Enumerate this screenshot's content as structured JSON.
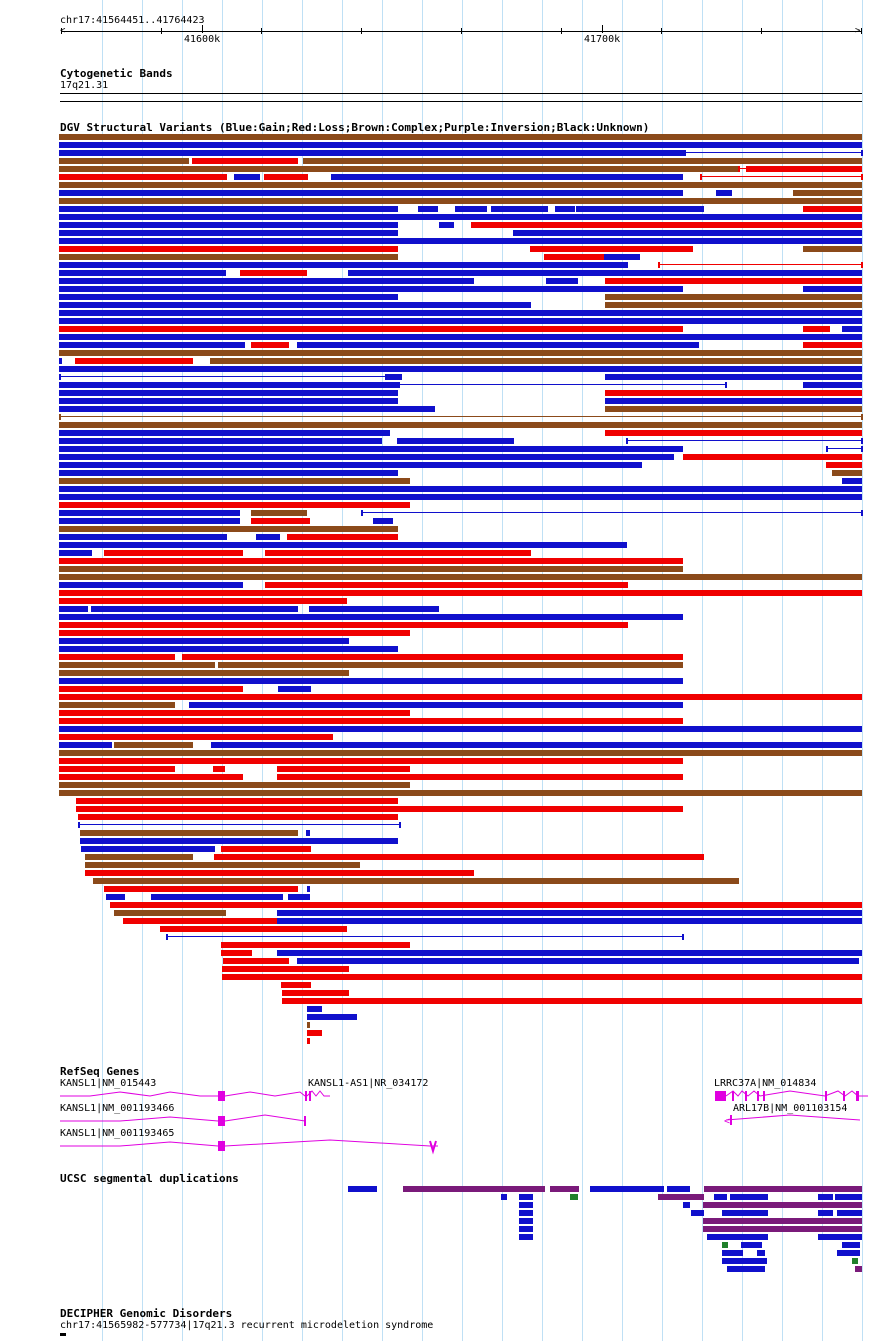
{
  "locus": "chr17:41564451..41764423",
  "ruler": {
    "ticks": [
      {
        "label": "41600k"
      },
      {
        "label": "41700k"
      }
    ]
  },
  "colors": {
    "gain": "#1010cc",
    "loss": "#f00000",
    "complex": "#8b4a1a",
    "inversion": "#7a1a7a",
    "unknown": "#000000",
    "gene": "#e000e0",
    "segdup_blue": "#1010cc",
    "segdup_purple": "#7a1a7a",
    "segdup_green": "#20802a",
    "grid": "#bfe0f5"
  },
  "tracks": {
    "cytoband": {
      "title": "Cytogenetic Bands",
      "band": "17q21.31"
    },
    "dgv": {
      "title": "DGV Structural Variants (Blue:Gain;Red:Loss;Brown:Complex;Purple:Inversion;Black:Unknown)"
    },
    "refseq": {
      "title": "RefSeq Genes",
      "genes": [
        {
          "label": "KANSL1|NM_015443"
        },
        {
          "label": "KANSL1-AS1|NR_034172"
        },
        {
          "label": "LRRC37A|NM_014834"
        },
        {
          "label": "KANSL1|NM_001193466"
        },
        {
          "label": "ARL17B|NM_001103154"
        },
        {
          "label": "KANSL1|NM_001193465"
        }
      ]
    },
    "segdup": {
      "title": "UCSC segmental duplications"
    },
    "decipher": {
      "title": "DECIPHER Genomic Disorders",
      "entry": "chr17:41565982-577734|17q21.3 recurrent microdeletion syndrome"
    }
  }
}
